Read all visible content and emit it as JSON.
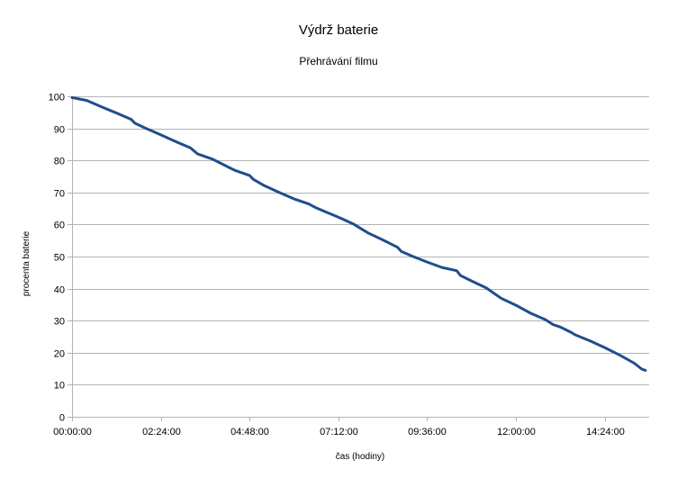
{
  "chart_data": {
    "type": "line",
    "title": "Výdrž baterie",
    "subtitle": "Přehrávání filmu",
    "xlabel": "čas (hodiny)",
    "ylabel": "procenta baterie",
    "x_unit": "hours",
    "xlim": [
      0,
      15.6
    ],
    "ylim": [
      0,
      100
    ],
    "x_ticks": [
      {
        "value": 0,
        "label": "00:00:00"
      },
      {
        "value": 2.4,
        "label": "02:24:00"
      },
      {
        "value": 4.8,
        "label": "04:48:00"
      },
      {
        "value": 7.2,
        "label": "07:12:00"
      },
      {
        "value": 9.6,
        "label": "09:36:00"
      },
      {
        "value": 12,
        "label": "12:00:00"
      },
      {
        "value": 14.4,
        "label": "14:24:00"
      }
    ],
    "y_ticks": [
      0,
      10,
      20,
      30,
      40,
      50,
      60,
      70,
      80,
      90,
      100
    ],
    "grid": "horizontal",
    "legend": "none",
    "colors": {
      "line": "#1f4e8c",
      "grid": "#b3b3b3",
      "axis": "#b3b3b3"
    },
    "series": [
      {
        "x": [
          0,
          0.4,
          0.8,
          1.2,
          1.6,
          1.7,
          2.0,
          2.4,
          2.8,
          3.2,
          3.4,
          3.8,
          4.0,
          4.4,
          4.8,
          4.9,
          5.2,
          5.6,
          6.0,
          6.4,
          6.6,
          6.8,
          7.2,
          7.6,
          7.8,
          8.0,
          8.4,
          8.8,
          8.9,
          9.2,
          9.6,
          10.0,
          10.4,
          10.5,
          10.8,
          11.2,
          11.4,
          11.6,
          12.0,
          12.4,
          12.8,
          13.0,
          13.2,
          13.5,
          13.6,
          14.0,
          14.4,
          14.8,
          15.2,
          15.4,
          15.5
        ],
        "y": [
          99.6,
          98.7,
          96.7,
          94.8,
          92.8,
          91.6,
          90.0,
          88.0,
          85.9,
          83.9,
          82.0,
          80.4,
          79.2,
          76.9,
          75.3,
          74.1,
          72.1,
          70.0,
          68.0,
          66.4,
          65.2,
          64.2,
          62.3,
          60.2,
          58.8,
          57.4,
          55.2,
          52.9,
          51.6,
          50.1,
          48.3,
          46.6,
          45.6,
          44.1,
          42.4,
          40.2,
          38.6,
          37.0,
          34.8,
          32.3,
          30.3,
          28.8,
          28.0,
          26.3,
          25.6,
          23.7,
          21.6,
          19.3,
          16.7,
          14.9,
          14.5
        ]
      }
    ]
  }
}
